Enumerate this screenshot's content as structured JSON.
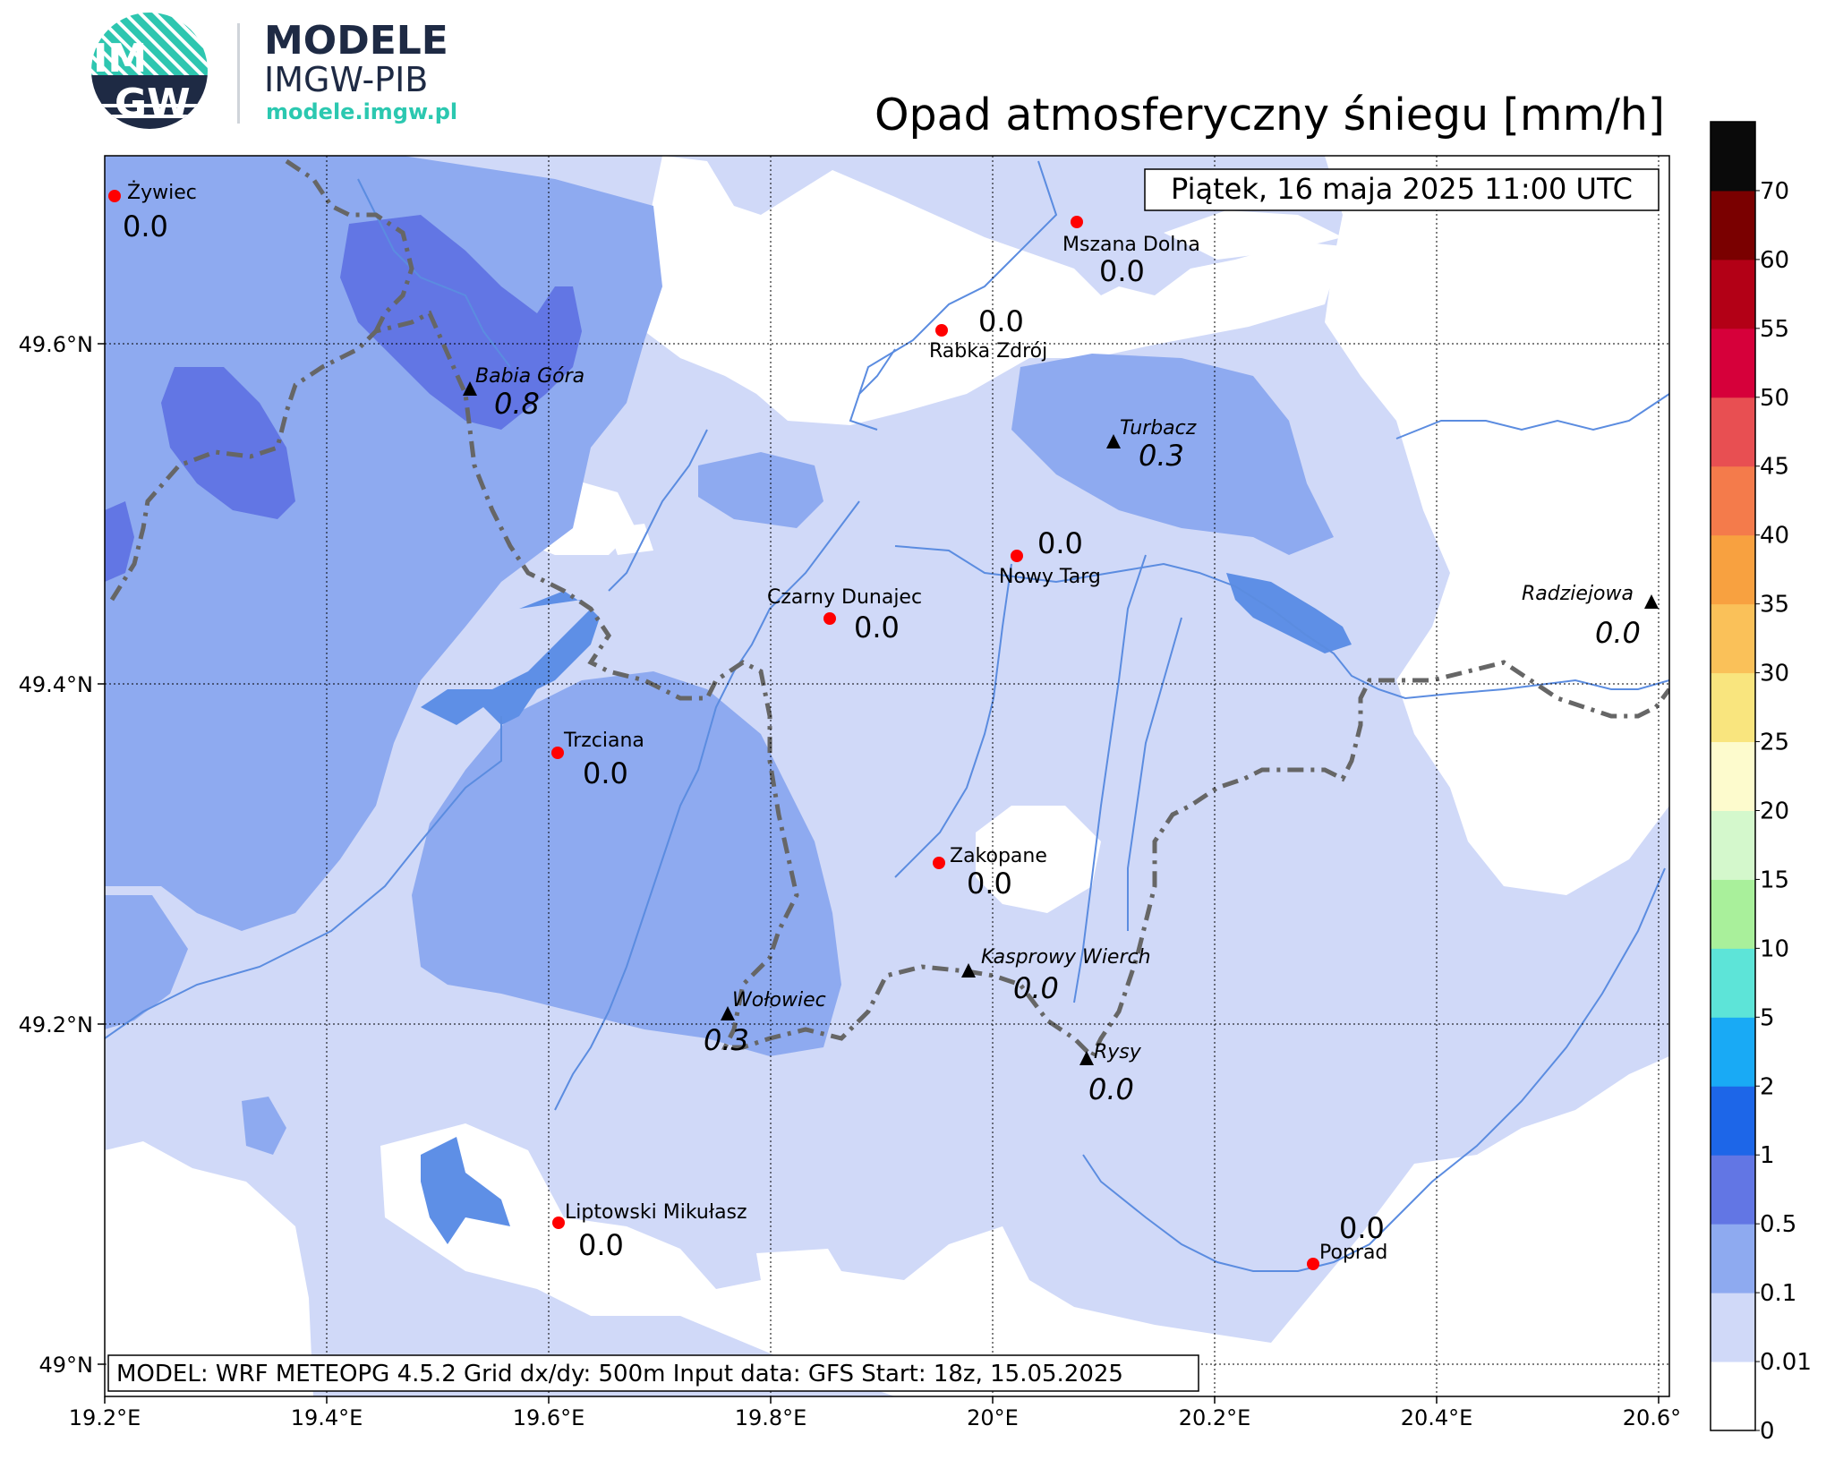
{
  "logo": {
    "monogram_top": "IM",
    "monogram_bottom": "GW",
    "title": "MODELE",
    "subtitle": "IMGW-PIB",
    "url": "modele.imgw.pl"
  },
  "title": "Opad atmosferyczny śniegu [mm/h]",
  "date": "Piątek, 16 maja 2025 11:00 UTC",
  "model_info": "MODEL: WRF METEOPG 4.5.2 Grid dx/dy: 500m Input data: GFS Start: 18z, 15.05.2025",
  "axes": {
    "lon_ticks": [
      "19.2°E",
      "19.4°E",
      "19.6°E",
      "19.8°E",
      "20°E",
      "20.2°E",
      "20.4°E",
      "20.6°E"
    ],
    "lat_ticks": [
      "49°N",
      "49.2°N",
      "49.4°N",
      "49.6°N"
    ]
  },
  "colorbar": {
    "levels": [
      "0",
      "0.01",
      "0.1",
      "0.5",
      "1",
      "2",
      "5",
      "10",
      "15",
      "20",
      "25",
      "30",
      "35",
      "40",
      "45",
      "50",
      "55",
      "60",
      "70"
    ],
    "colors": [
      "#ffffff",
      "#d0d9f8",
      "#8eaaf0",
      "#6276e4",
      "#1d66e8",
      "#19aaf5",
      "#5de4d8",
      "#a9f09b",
      "#d4f8cc",
      "#fdfbcd",
      "#f9e57e",
      "#fac159",
      "#f8a140",
      "#f47b4b",
      "#e84f52",
      "#d6003a",
      "#b30016",
      "#7a0000",
      "#0a0a0a"
    ]
  },
  "cities": [
    {
      "name": "Żywiec",
      "value": "0.0"
    },
    {
      "name": "Mszana Dolna",
      "value": "0.0"
    },
    {
      "name": "Rabka Zdrój",
      "value": "0.0"
    },
    {
      "name": "Nowy Targ",
      "value": "0.0"
    },
    {
      "name": "Czarny Dunajec",
      "value": "0.0"
    },
    {
      "name": "Trzciana",
      "value": "0.0"
    },
    {
      "name": "Zakopane",
      "value": "0.0"
    },
    {
      "name": "Liptowski Mikułasz",
      "value": "0.0"
    },
    {
      "name": "Poprad",
      "value": "0.0"
    }
  ],
  "peaks": [
    {
      "name": "Babia Góra",
      "value": "0.8"
    },
    {
      "name": "Turbacz",
      "value": "0.3"
    },
    {
      "name": "Radziejowa",
      "value": "0.0"
    },
    {
      "name": "Kasprowy Wierch",
      "value": "0.0"
    },
    {
      "name": "Wołowiec",
      "value": "0.3"
    },
    {
      "name": "Rysy",
      "value": "0.0"
    }
  ]
}
